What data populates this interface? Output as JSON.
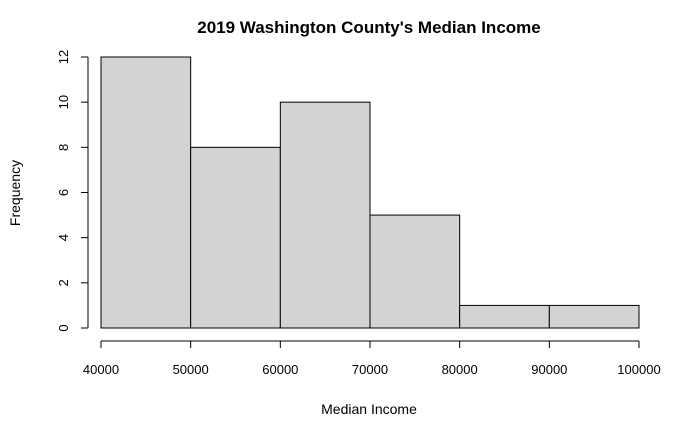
{
  "chart_data": {
    "type": "bar",
    "subtype": "histogram",
    "title": "2019 Washington County's Median Income",
    "xlabel": "Median Income",
    "ylabel": "Frequency",
    "bins": [
      {
        "from": 40000,
        "to": 50000,
        "count": 12
      },
      {
        "from": 50000,
        "to": 60000,
        "count": 8
      },
      {
        "from": 60000,
        "to": 70000,
        "count": 10
      },
      {
        "from": 70000,
        "to": 80000,
        "count": 5
      },
      {
        "from": 80000,
        "to": 90000,
        "count": 1
      },
      {
        "from": 90000,
        "to": 100000,
        "count": 1
      }
    ],
    "xlim": [
      40000,
      100000
    ],
    "ylim": [
      0,
      12
    ],
    "x_ticks": [
      40000,
      50000,
      60000,
      70000,
      80000,
      90000,
      100000
    ],
    "y_ticks": [
      0,
      2,
      4,
      6,
      8,
      10,
      12
    ],
    "grid": false,
    "bar_fill": "#d3d3d3",
    "bar_stroke": "#000000"
  }
}
